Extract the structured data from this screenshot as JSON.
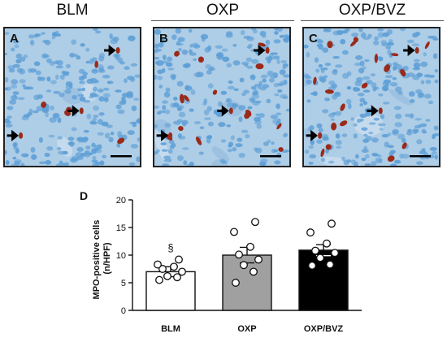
{
  "groups": [
    {
      "title": "BLM",
      "letter": "A"
    },
    {
      "title": "OXP",
      "letter": "B"
    },
    {
      "title": "OXP/BVZ",
      "letter": "C"
    }
  ],
  "colors": {
    "stain_background": "#aecde6",
    "nuclei": "#5e9fd6",
    "positive_cells": "#9a2a1a",
    "frame": "#222222"
  },
  "chart_data": {
    "type": "bar",
    "panel_letter": "D",
    "ylabel": "MPO-positive cells\n(n/HPF)",
    "xlabel": "",
    "ylim": [
      0,
      20
    ],
    "yticks": [
      0,
      5,
      10,
      15,
      20
    ],
    "categories": [
      "BLM",
      "OXP",
      "OXP/BVZ"
    ],
    "values": [
      7.0,
      10.0,
      10.9
    ],
    "errors": [
      0.9,
      1.4,
      1.0
    ],
    "bar_colors": [
      "#ffffff",
      "#a0a0a0",
      "#000000"
    ],
    "points": [
      [
        5.5,
        6.0,
        6.2,
        7.0,
        7.5,
        7.9,
        8.3,
        9.2
      ],
      [
        5.0,
        7.0,
        8.2,
        9.2,
        10.1,
        11.5,
        14.2,
        16.0
      ],
      [
        8.1,
        8.3,
        9.5,
        10.4,
        10.8,
        12.1,
        14.1,
        15.7
      ]
    ],
    "annotations": [
      {
        "category": "BLM",
        "text": "§"
      }
    ]
  }
}
